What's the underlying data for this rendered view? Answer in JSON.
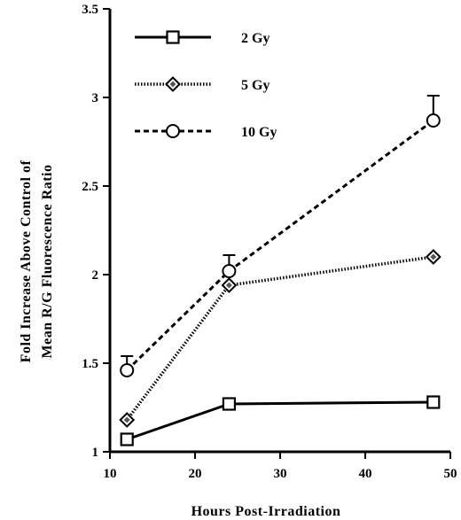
{
  "chart_data": {
    "type": "line",
    "xlabel": "Hours  Post-Irradiation",
    "ylabel": [
      "Fold Increase Above Control of",
      "Mean R/G Fluorescence Ratio"
    ],
    "xlim": [
      10,
      50
    ],
    "ylim": [
      1,
      3.5
    ],
    "xticks": [
      10,
      20,
      30,
      40,
      50
    ],
    "yticks": [
      1,
      1.5,
      2,
      2.5,
      3,
      3.5
    ],
    "xtick_labels": [
      "10",
      "20",
      "30",
      "40",
      "50"
    ],
    "ytick_labels": [
      "1",
      "1.5",
      "2",
      "2.5",
      "3",
      "3.5"
    ],
    "grid": false,
    "legend_position": "top-left",
    "series": [
      {
        "name": "2 Gy",
        "marker": "square",
        "line_style": "solid",
        "x": [
          12,
          24,
          48
        ],
        "y": [
          1.07,
          1.27,
          1.28
        ],
        "error_up": [
          0,
          0,
          0
        ]
      },
      {
        "name": "5 Gy",
        "marker": "diamond",
        "line_style": "dotted",
        "x": [
          12,
          24,
          48
        ],
        "y": [
          1.18,
          1.94,
          2.1
        ],
        "error_up": [
          0,
          0,
          0
        ]
      },
      {
        "name": "10 Gy",
        "marker": "circle",
        "line_style": "dashed",
        "x": [
          12,
          24,
          48
        ],
        "y": [
          1.46,
          2.02,
          2.87
        ],
        "error_up": [
          0.08,
          0.09,
          0.14
        ]
      }
    ]
  }
}
